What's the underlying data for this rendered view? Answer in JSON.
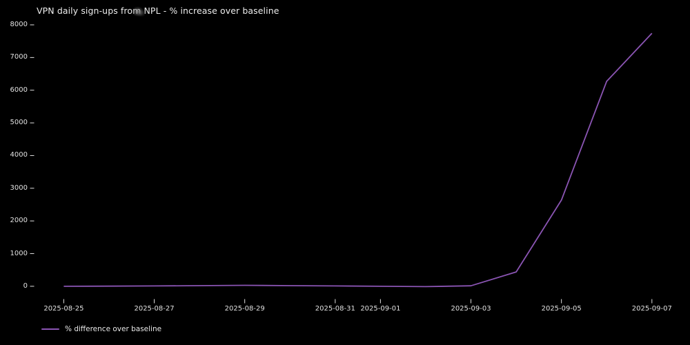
{
  "title": "VPN daily sign-ups from NPL - % increase over baseline",
  "legend": {
    "label": "% difference over baseline"
  },
  "colors": {
    "background": "#000000",
    "text": "#e8e8e8",
    "line": "#8b55b4"
  },
  "chart_data": {
    "type": "line",
    "title": "VPN daily sign-ups from NPL - % increase over baseline",
    "x": [
      "2025-08-25",
      "2025-08-26",
      "2025-08-27",
      "2025-08-28",
      "2025-08-29",
      "2025-08-30",
      "2025-08-31",
      "2025-09-01",
      "2025-09-02",
      "2025-09-03",
      "2025-09-04",
      "2025-09-05",
      "2025-09-06",
      "2025-09-07"
    ],
    "series": [
      {
        "name": "% difference over baseline",
        "color": "#8b55b4",
        "values": [
          0,
          5,
          10,
          20,
          30,
          20,
          10,
          0,
          -10,
          15,
          440,
          2640,
          6270,
          7740
        ]
      }
    ],
    "xticks": [
      "2025-08-25",
      "2025-08-27",
      "2025-08-29",
      "2025-08-31",
      "2025-09-01",
      "2025-09-03",
      "2025-09-05",
      "2025-09-07"
    ],
    "yticks": [
      0,
      1000,
      2000,
      3000,
      4000,
      5000,
      6000,
      7000,
      8000
    ],
    "xlabel": "",
    "ylabel": "",
    "ylim": [
      -410,
      8130
    ],
    "grid": false,
    "legend_position": "lower left, below axis",
    "background": "#000000",
    "tick_color": "#e2e2e2"
  }
}
